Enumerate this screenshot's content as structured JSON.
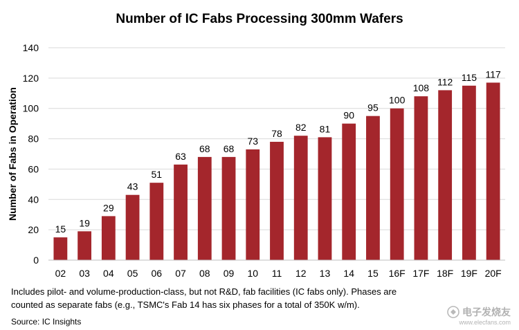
{
  "chart_data": {
    "type": "bar",
    "title": "Number of IC Fabs Processing 300mm Wafers",
    "xlabel": "",
    "ylabel": "Number of Fabs in Operation",
    "categories": [
      "02",
      "03",
      "04",
      "05",
      "06",
      "07",
      "08",
      "09",
      "10",
      "11",
      "12",
      "13",
      "14",
      "15",
      "16F",
      "17F",
      "18F",
      "19F",
      "20F"
    ],
    "values": [
      15,
      19,
      29,
      43,
      51,
      63,
      68,
      68,
      73,
      78,
      82,
      81,
      90,
      95,
      100,
      108,
      112,
      115,
      117
    ],
    "ylim": [
      0,
      140
    ],
    "yticks": [
      0,
      20,
      40,
      60,
      80,
      100,
      120,
      140
    ],
    "grid": true,
    "bar_color": "#A4262C",
    "grid_color": "#D9D9D9",
    "data_labels": true
  },
  "notes": {
    "line1": "Includes pilot- and volume-production-class, but not R&D, fab facilities (IC fabs only).  Phases are",
    "line2": "counted as separate fabs (e.g., TSMC's Fab 14 has six phases for a total of 350K w/m).",
    "source": "Source:  IC Insights"
  },
  "watermark": {
    "name": "电子发烧友",
    "url": "www.elecfans.com",
    "icon": "elecfans-logo-icon"
  }
}
